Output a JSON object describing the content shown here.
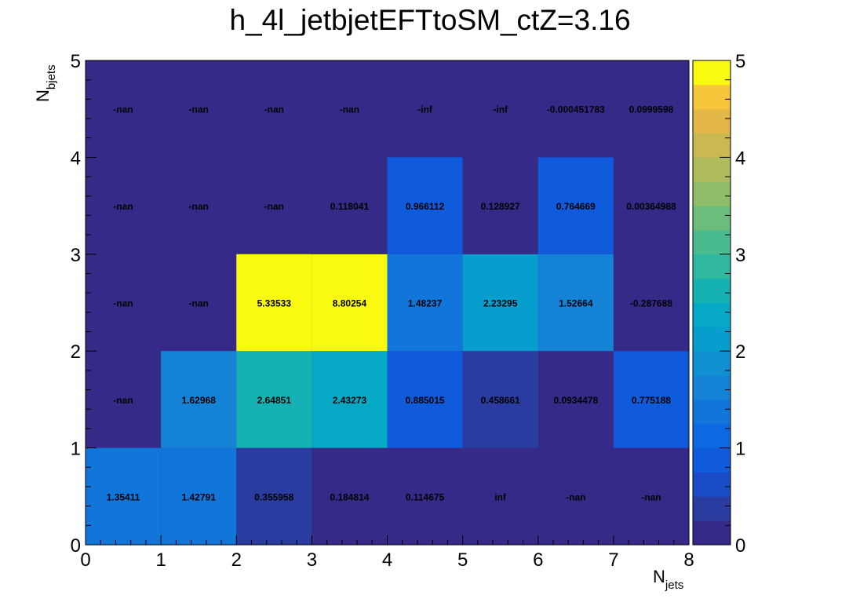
{
  "chart_data": {
    "type": "heatmap",
    "title": "h_4l_jetbjetEFTtoSM_ctZ=3.16",
    "xlabel_main": "N",
    "xlabel_sub": "jets",
    "ylabel_main": "N",
    "ylabel_sub": "bjets",
    "x_edges": [
      0,
      1,
      2,
      3,
      4,
      5,
      6,
      7,
      8
    ],
    "y_edges": [
      0,
      1,
      2,
      3,
      4,
      5
    ],
    "x_ticks": [
      "0",
      "1",
      "2",
      "3",
      "4",
      "5",
      "6",
      "7",
      "8"
    ],
    "y_ticks": [
      "0",
      "1",
      "2",
      "3",
      "4",
      "5"
    ],
    "zlim": [
      0,
      5
    ],
    "z_ticks": [
      "0",
      "1",
      "2",
      "3",
      "4",
      "5"
    ],
    "colormap": "parula",
    "rows_bottom_to_top": [
      [
        "1.35411",
        "1.42791",
        "0.355958",
        "0.184814",
        "0.114675",
        "inf",
        "-nan",
        "-nan"
      ],
      [
        "-nan",
        "1.62968",
        "2.64851",
        "2.43273",
        "0.885015",
        "0.458661",
        "0.0934478",
        "0.775188"
      ],
      [
        "-nan",
        "-nan",
        "5.33533",
        "8.80254",
        "1.48237",
        "2.23295",
        "1.52664",
        "-0.287688"
      ],
      [
        "-nan",
        "-nan",
        "-nan",
        "0.118041",
        "0.966112",
        "0.128927",
        "0.764669",
        "0.00364988"
      ],
      [
        "-nan",
        "-nan",
        "-nan",
        "-nan",
        "-inf",
        "-inf",
        "-0.000451783",
        "0.0999598"
      ]
    ]
  }
}
